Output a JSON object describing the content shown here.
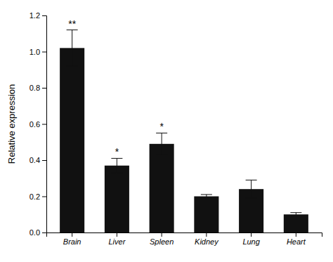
{
  "chart_data": {
    "type": "bar",
    "categories": [
      "Brain",
      "Liver",
      "Spleen",
      "Kidney",
      "Lung",
      "Heart"
    ],
    "values": [
      1.02,
      0.37,
      0.49,
      0.2,
      0.24,
      0.1
    ],
    "errors": [
      0.1,
      0.04,
      0.06,
      0.01,
      0.05,
      0.01
    ],
    "color": "#111111",
    "ylabel": "Relative expression",
    "ylim": [
      0,
      1.2
    ],
    "yticks": [
      {
        "value": 0.0,
        "label": "0.0"
      },
      0.2,
      0.4,
      0.6,
      0.8,
      {
        "value": 1.0,
        "label": "1.0"
      },
      1.2
    ],
    "annotations": [
      {
        "text": "**",
        "x": "Brain"
      },
      {
        "text": "*",
        "x": "Liver"
      },
      {
        "text": "*",
        "x": "Spleen"
      }
    ],
    "grid": false
  }
}
